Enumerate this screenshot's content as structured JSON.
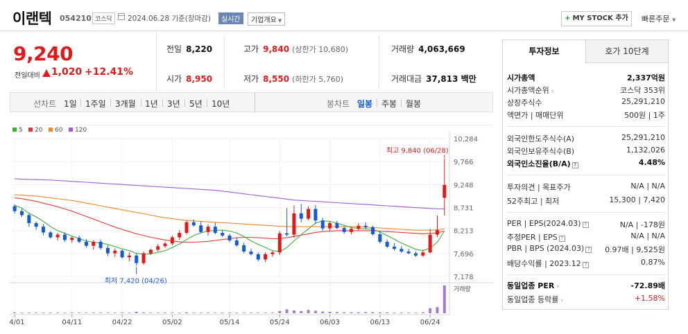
{
  "header": {
    "company": "이랜텍",
    "code": "054210",
    "market": "코스닥",
    "date": "2024.06.28",
    "basis": "기준(장마감)",
    "realtime_badge": "실시간",
    "overview_label": "기업개요",
    "mystock_label": "MY STOCK 추가",
    "quick_order": "빠른주문"
  },
  "price": {
    "current": "9,240",
    "change_label": "전일대비",
    "change": "1,020",
    "change_pct": "+12.41%",
    "color_up": "#e01a1a",
    "color_down": "#1559d6"
  },
  "stats": {
    "prev_close_label": "전일",
    "prev_close": "8,220",
    "open_label": "시가",
    "open": "8,950",
    "high_label": "고가",
    "high": "9,840",
    "upper_limit": "(상한가 10,680)",
    "low_label": "저가",
    "low": "8,550",
    "lower_limit": "(하한가 5,760)",
    "volume_label": "거래량",
    "volume": "4,063,669",
    "amount_label": "거래대금",
    "amount": "37,813 백만"
  },
  "toolbar": {
    "line_label": "선차트",
    "periods": [
      "1일",
      "1주일",
      "3개월",
      "1년",
      "3년",
      "5년",
      "10년"
    ],
    "candle_label": "봉차트",
    "candle_types": [
      "일봉",
      "주봉",
      "월봉"
    ],
    "active_candle": "일봉"
  },
  "chart_data": {
    "type": "candlestick",
    "legend": [
      {
        "name": "5",
        "color": "#3fae3f"
      },
      {
        "name": "20",
        "color": "#e03b3b"
      },
      {
        "name": "60",
        "color": "#e8892a"
      },
      {
        "name": "120",
        "color": "#a05ad0"
      }
    ],
    "x_ticks": [
      "04/01",
      "04/11",
      "04/22",
      "05/02",
      "05/14",
      "05/24",
      "06/03",
      "06/13",
      "06/24"
    ],
    "y_ticks": [
      "10,284",
      "9,766",
      "9,248",
      "8,731",
      "8,213",
      "7,696",
      "7,178"
    ],
    "ylim": [
      7178,
      10284
    ],
    "volume_label": "거래량",
    "high_annotation": "최고 9,840 (06/28)",
    "low_annotation": "최저 7,420 (04/26)",
    "candles": [
      {
        "o": 8760,
        "h": 8800,
        "l": 8600,
        "c": 8650
      },
      {
        "o": 8650,
        "h": 8700,
        "l": 8520,
        "c": 8560
      },
      {
        "o": 8560,
        "h": 8600,
        "l": 8300,
        "c": 8380
      },
      {
        "o": 8380,
        "h": 8420,
        "l": 8230,
        "c": 8300
      },
      {
        "o": 8300,
        "h": 8360,
        "l": 8110,
        "c": 8170
      },
      {
        "o": 8170,
        "h": 8200,
        "l": 8030,
        "c": 8060
      },
      {
        "o": 8060,
        "h": 8160,
        "l": 7990,
        "c": 8120
      },
      {
        "o": 8120,
        "h": 8170,
        "l": 7960,
        "c": 8000
      },
      {
        "o": 8000,
        "h": 8080,
        "l": 7940,
        "c": 8050
      },
      {
        "o": 8050,
        "h": 8100,
        "l": 7930,
        "c": 7960
      },
      {
        "o": 7960,
        "h": 8020,
        "l": 7830,
        "c": 7870
      },
      {
        "o": 7870,
        "h": 8000,
        "l": 7780,
        "c": 7960
      },
      {
        "o": 7960,
        "h": 8010,
        "l": 7780,
        "c": 7820
      },
      {
        "o": 7820,
        "h": 7880,
        "l": 7640,
        "c": 7700
      },
      {
        "o": 7700,
        "h": 7810,
        "l": 7620,
        "c": 7760
      },
      {
        "o": 7760,
        "h": 7790,
        "l": 7580,
        "c": 7610
      },
      {
        "o": 7610,
        "h": 7720,
        "l": 7520,
        "c": 7650
      },
      {
        "o": 7650,
        "h": 7700,
        "l": 7420,
        "c": 7480
      },
      {
        "o": 7480,
        "h": 7740,
        "l": 7440,
        "c": 7700
      },
      {
        "o": 7700,
        "h": 7800,
        "l": 7660,
        "c": 7780
      },
      {
        "o": 7780,
        "h": 7910,
        "l": 7740,
        "c": 7860
      },
      {
        "o": 7860,
        "h": 7960,
        "l": 7820,
        "c": 7920
      },
      {
        "o": 7920,
        "h": 8100,
        "l": 7880,
        "c": 8060
      },
      {
        "o": 8060,
        "h": 8220,
        "l": 8000,
        "c": 8160
      },
      {
        "o": 8160,
        "h": 8440,
        "l": 8120,
        "c": 8400
      },
      {
        "o": 8400,
        "h": 8460,
        "l": 8300,
        "c": 8330
      },
      {
        "o": 8330,
        "h": 8420,
        "l": 8150,
        "c": 8180
      },
      {
        "o": 8180,
        "h": 8350,
        "l": 8100,
        "c": 8300
      },
      {
        "o": 8300,
        "h": 8390,
        "l": 8130,
        "c": 8160
      },
      {
        "o": 8160,
        "h": 8220,
        "l": 8070,
        "c": 8100
      },
      {
        "o": 8100,
        "h": 8140,
        "l": 7950,
        "c": 7990
      },
      {
        "o": 7990,
        "h": 8050,
        "l": 7850,
        "c": 7880
      },
      {
        "o": 7880,
        "h": 7940,
        "l": 7700,
        "c": 7740
      },
      {
        "o": 7740,
        "h": 7800,
        "l": 7650,
        "c": 7680
      },
      {
        "o": 7680,
        "h": 7720,
        "l": 7520,
        "c": 7560
      },
      {
        "o": 7560,
        "h": 7720,
        "l": 7500,
        "c": 7680
      },
      {
        "o": 7680,
        "h": 7760,
        "l": 7620,
        "c": 7720
      },
      {
        "o": 7720,
        "h": 8200,
        "l": 7660,
        "c": 8150
      },
      {
        "o": 8150,
        "h": 8720,
        "l": 8080,
        "c": 8120
      },
      {
        "o": 8120,
        "h": 8780,
        "l": 8050,
        "c": 8600
      },
      {
        "o": 8600,
        "h": 8810,
        "l": 8400,
        "c": 8480
      },
      {
        "o": 8480,
        "h": 8760,
        "l": 8440,
        "c": 8700
      },
      {
        "o": 8700,
        "h": 8790,
        "l": 8360,
        "c": 8440
      },
      {
        "o": 8440,
        "h": 8500,
        "l": 8210,
        "c": 8260
      },
      {
        "o": 8260,
        "h": 8420,
        "l": 8200,
        "c": 8380
      },
      {
        "o": 8380,
        "h": 8430,
        "l": 8240,
        "c": 8270
      },
      {
        "o": 8270,
        "h": 8300,
        "l": 8140,
        "c": 8180
      },
      {
        "o": 8180,
        "h": 8290,
        "l": 8130,
        "c": 8250
      },
      {
        "o": 8250,
        "h": 8380,
        "l": 8200,
        "c": 8320
      },
      {
        "o": 8320,
        "h": 8400,
        "l": 8250,
        "c": 8290
      },
      {
        "o": 8290,
        "h": 8320,
        "l": 8100,
        "c": 8130
      },
      {
        "o": 8130,
        "h": 8180,
        "l": 7920,
        "c": 7960
      },
      {
        "o": 7960,
        "h": 8010,
        "l": 7820,
        "c": 7850
      },
      {
        "o": 7850,
        "h": 7930,
        "l": 7760,
        "c": 7800
      },
      {
        "o": 7800,
        "h": 7860,
        "l": 7710,
        "c": 7740
      },
      {
        "o": 7740,
        "h": 7800,
        "l": 7680,
        "c": 7700
      },
      {
        "o": 7700,
        "h": 7740,
        "l": 7620,
        "c": 7650
      },
      {
        "o": 7650,
        "h": 7780,
        "l": 7620,
        "c": 7720
      },
      {
        "o": 7720,
        "h": 8250,
        "l": 7700,
        "c": 8120
      },
      {
        "o": 8120,
        "h": 8550,
        "l": 8060,
        "c": 8220
      },
      {
        "o": 8950,
        "h": 9840,
        "l": 8550,
        "c": 9240
      }
    ],
    "ma": {
      "5": [
        8780,
        8720,
        8600,
        8520,
        8420,
        8300,
        8210,
        8150,
        8090,
        8030,
        7980,
        7950,
        7930,
        7900,
        7850,
        7800,
        7760,
        7700,
        7680,
        7690,
        7720,
        7760,
        7830,
        7910,
        8010,
        8100,
        8160,
        8200,
        8220,
        8220,
        8200,
        8160,
        8080,
        7980,
        7900,
        7830,
        7760,
        7740,
        7830,
        7980,
        8120,
        8250,
        8380,
        8430,
        8420,
        8380,
        8330,
        8280,
        8260,
        8250,
        8240,
        8180,
        8100,
        8020,
        7930,
        7860,
        7790,
        7760,
        7820,
        7950,
        8200
      ],
      "20": [
        8950,
        8930,
        8900,
        8870,
        8830,
        8790,
        8750,
        8700,
        8650,
        8590,
        8530,
        8470,
        8410,
        8350,
        8290,
        8240,
        8190,
        8140,
        8100,
        8060,
        8030,
        8000,
        7980,
        7960,
        7950,
        7950,
        7960,
        7970,
        7990,
        8010,
        8030,
        8050,
        8060,
        8060,
        8050,
        8040,
        8030,
        8030,
        8050,
        8080,
        8110,
        8140,
        8170,
        8190,
        8200,
        8210,
        8210,
        8210,
        8210,
        8210,
        8210,
        8200,
        8190,
        8180,
        8170,
        8160,
        8150,
        8140,
        8150,
        8160,
        8200
      ],
      "60": [
        9020,
        9010,
        9000,
        8990,
        8970,
        8950,
        8930,
        8910,
        8890,
        8860,
        8830,
        8800,
        8770,
        8740,
        8710,
        8680,
        8650,
        8620,
        8590,
        8560,
        8530,
        8500,
        8480,
        8460,
        8440,
        8430,
        8420,
        8410,
        8400,
        8390,
        8380,
        8370,
        8360,
        8350,
        8340,
        8330,
        8320,
        8310,
        8300,
        8300,
        8300,
        8300,
        8300,
        8300,
        8300,
        8300,
        8300,
        8300,
        8300,
        8290,
        8280,
        8270,
        8260,
        8250,
        8240,
        8230,
        8220,
        8220,
        8220,
        8230,
        8250
      ],
      "120": [
        9380,
        9370,
        9365,
        9360,
        9355,
        9350,
        9340,
        9330,
        9320,
        9310,
        9300,
        9290,
        9280,
        9270,
        9260,
        9250,
        9240,
        9230,
        9220,
        9210,
        9200,
        9190,
        9180,
        9170,
        9160,
        9150,
        9140,
        9130,
        9120,
        9100,
        9080,
        9060,
        9040,
        9020,
        9000,
        8980,
        8960,
        8940,
        8920,
        8900,
        8890,
        8880,
        8870,
        8860,
        8850,
        8840,
        8830,
        8820,
        8810,
        8800,
        8790,
        8780,
        8770,
        8760,
        8750,
        8740,
        8730,
        8720,
        8710,
        8700,
        8700
      ]
    },
    "volumes": [
      3,
      2,
      2,
      2,
      2,
      2,
      2,
      2,
      2,
      2,
      2,
      2,
      2,
      2,
      2,
      2,
      2,
      5,
      3,
      2,
      2,
      2,
      2,
      2,
      3,
      2,
      2,
      2,
      2,
      2,
      2,
      2,
      2,
      2,
      2,
      2,
      2,
      8,
      14,
      10,
      8,
      12,
      9,
      6,
      5,
      4,
      3,
      3,
      3,
      4,
      4,
      3,
      3,
      2,
      2,
      2,
      2,
      3,
      18,
      22,
      100
    ]
  },
  "panel": {
    "tab_active": "투자정보",
    "tab_other": "호가 10단계",
    "rows1": [
      {
        "label": "시가총액",
        "value": "2,337억원"
      },
      {
        "label": "시가총액순위",
        "value": "코스닥 353위"
      },
      {
        "label": "상장주식수",
        "value": "25,291,210"
      },
      {
        "label": "액면가 | 매매단위",
        "value": "500원 | 1주"
      }
    ],
    "rows2": [
      {
        "label": "외국인한도주식수(A)",
        "value": "25,291,210"
      },
      {
        "label": "외국인보유주식수(B)",
        "value": "1,132,026"
      },
      {
        "label": "외국인소진율(B/A)",
        "value": "4.48%"
      }
    ],
    "rows3": [
      {
        "label": "투자의견 | 목표주가",
        "value": "N/A | N/A"
      },
      {
        "label": "52주최고 | 최저",
        "value": "15,300 | 7,420"
      }
    ],
    "rows4": [
      {
        "label": "PER | EPS(2024.03)",
        "value": "N/A | -178원"
      },
      {
        "label": "추정PER | EPS",
        "value": "N/A | N/A"
      },
      {
        "label": "PBR | BPS (2024.03)",
        "value": "0.97배 | 9,525원"
      },
      {
        "label": "배당수익률 | 2023.12",
        "value": "0.87%"
      }
    ],
    "rows5": [
      {
        "label": "동일업종 PER",
        "value": "-72.89배"
      },
      {
        "label": "동일업종 등락률",
        "value": "+1.58%"
      }
    ]
  }
}
